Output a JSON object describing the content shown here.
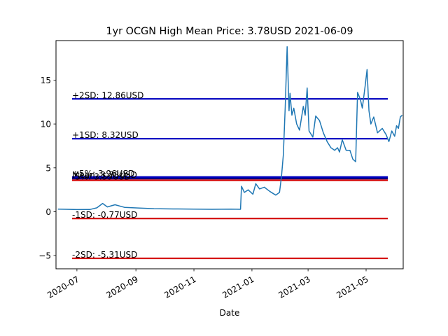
{
  "chart_data": {
    "type": "line",
    "title": "1yr OCGN High Mean Price: 3.78USD 2021-06-09",
    "xlabel": "Date",
    "ylabel": "",
    "xlim": [
      "2020-06-09",
      "2021-06-09"
    ],
    "ylim": [
      -6.5,
      19.5
    ],
    "x_ticks": [
      {
        "date": "2020-07-01",
        "label": "2020-07"
      },
      {
        "date": "2020-09-01",
        "label": "2020-09"
      },
      {
        "date": "2020-11-01",
        "label": "2020-11"
      },
      {
        "date": "2021-01-01",
        "label": "2021-01"
      },
      {
        "date": "2021-03-01",
        "label": "2021-03"
      },
      {
        "date": "2021-05-01",
        "label": "2021-05"
      }
    ],
    "y_ticks": [
      -5,
      0,
      5,
      10,
      15
    ],
    "y_tick_labels": [
      "−5",
      "0",
      "5",
      "10",
      "15"
    ],
    "grid": false,
    "line_color": "#1f77b4",
    "series": [
      {
        "points": [
          [
            "2020-06-11",
            0.3
          ],
          [
            "2020-06-20",
            0.28
          ],
          [
            "2020-07-01",
            0.25
          ],
          [
            "2020-07-15",
            0.26
          ],
          [
            "2020-07-22",
            0.45
          ],
          [
            "2020-07-28",
            0.95
          ],
          [
            "2020-08-02",
            0.55
          ],
          [
            "2020-08-10",
            0.8
          ],
          [
            "2020-08-20",
            0.5
          ],
          [
            "2020-09-05",
            0.42
          ],
          [
            "2020-09-20",
            0.35
          ],
          [
            "2020-10-10",
            0.32
          ],
          [
            "2020-11-01",
            0.3
          ],
          [
            "2020-11-20",
            0.28
          ],
          [
            "2020-12-10",
            0.3
          ],
          [
            "2020-12-20",
            0.28
          ],
          [
            "2020-12-21",
            2.9
          ],
          [
            "2020-12-24",
            2.2
          ],
          [
            "2020-12-28",
            2.5
          ],
          [
            "2021-01-02",
            2.0
          ],
          [
            "2021-01-05",
            3.2
          ],
          [
            "2021-01-09",
            2.6
          ],
          [
            "2021-01-14",
            2.8
          ],
          [
            "2021-01-20",
            2.3
          ],
          [
            "2021-01-26",
            1.9
          ],
          [
            "2021-01-30",
            2.2
          ],
          [
            "2021-02-01",
            4.0
          ],
          [
            "2021-02-03",
            6.5
          ],
          [
            "2021-02-05",
            12.0
          ],
          [
            "2021-02-07",
            18.8
          ],
          [
            "2021-02-09",
            11.5
          ],
          [
            "2021-02-10",
            13.5
          ],
          [
            "2021-02-12",
            11.0
          ],
          [
            "2021-02-14",
            11.8
          ],
          [
            "2021-02-17",
            10.0
          ],
          [
            "2021-02-20",
            9.3
          ],
          [
            "2021-02-24",
            12.0
          ],
          [
            "2021-02-26",
            11.0
          ],
          [
            "2021-02-28",
            14.1
          ],
          [
            "2021-03-02",
            9.2
          ],
          [
            "2021-03-06",
            8.5
          ],
          [
            "2021-03-09",
            10.9
          ],
          [
            "2021-03-13",
            10.4
          ],
          [
            "2021-03-17",
            9.0
          ],
          [
            "2021-03-21",
            8.0
          ],
          [
            "2021-03-25",
            7.3
          ],
          [
            "2021-03-29",
            7.0
          ],
          [
            "2021-04-01",
            7.3
          ],
          [
            "2021-04-03",
            6.8
          ],
          [
            "2021-04-06",
            8.2
          ],
          [
            "2021-04-10",
            7.0
          ],
          [
            "2021-04-14",
            7.0
          ],
          [
            "2021-04-17",
            6.0
          ],
          [
            "2021-04-20",
            5.7
          ],
          [
            "2021-04-22",
            13.6
          ],
          [
            "2021-04-25",
            12.8
          ],
          [
            "2021-04-27",
            11.8
          ],
          [
            "2021-04-30",
            14.3
          ],
          [
            "2021-05-02",
            16.2
          ],
          [
            "2021-05-04",
            11.5
          ],
          [
            "2021-05-06",
            10.0
          ],
          [
            "2021-05-09",
            10.8
          ],
          [
            "2021-05-13",
            9.0
          ],
          [
            "2021-05-18",
            9.5
          ],
          [
            "2021-05-22",
            8.8
          ],
          [
            "2021-05-25",
            8.0
          ],
          [
            "2021-05-28",
            9.2
          ],
          [
            "2021-05-31",
            8.6
          ],
          [
            "2021-06-02",
            9.8
          ],
          [
            "2021-06-04",
            9.5
          ],
          [
            "2021-06-06",
            10.8
          ],
          [
            "2021-06-08",
            11.0
          ]
        ]
      }
    ],
    "reference_lines": [
      {
        "label": "+2SD: 12.86USD",
        "value": 12.86,
        "color": "#0000bf"
      },
      {
        "label": "+1SD: 8.32USD",
        "value": 8.32,
        "color": "#0000bf"
      },
      {
        "label": "+5%: 3.96USD",
        "value": 3.96,
        "color": "#0000bf"
      },
      {
        "label": "Mean: 3.78USD",
        "value": 3.78,
        "color": "#000080"
      },
      {
        "label": "-5%: 3.59USD",
        "value": 3.59,
        "color": "#d40000"
      },
      {
        "label": "-1SD: -0.77USD",
        "value": -0.77,
        "color": "#d40000"
      },
      {
        "label": "-2SD: -5.31USD",
        "value": -5.31,
        "color": "#d40000"
      }
    ]
  }
}
